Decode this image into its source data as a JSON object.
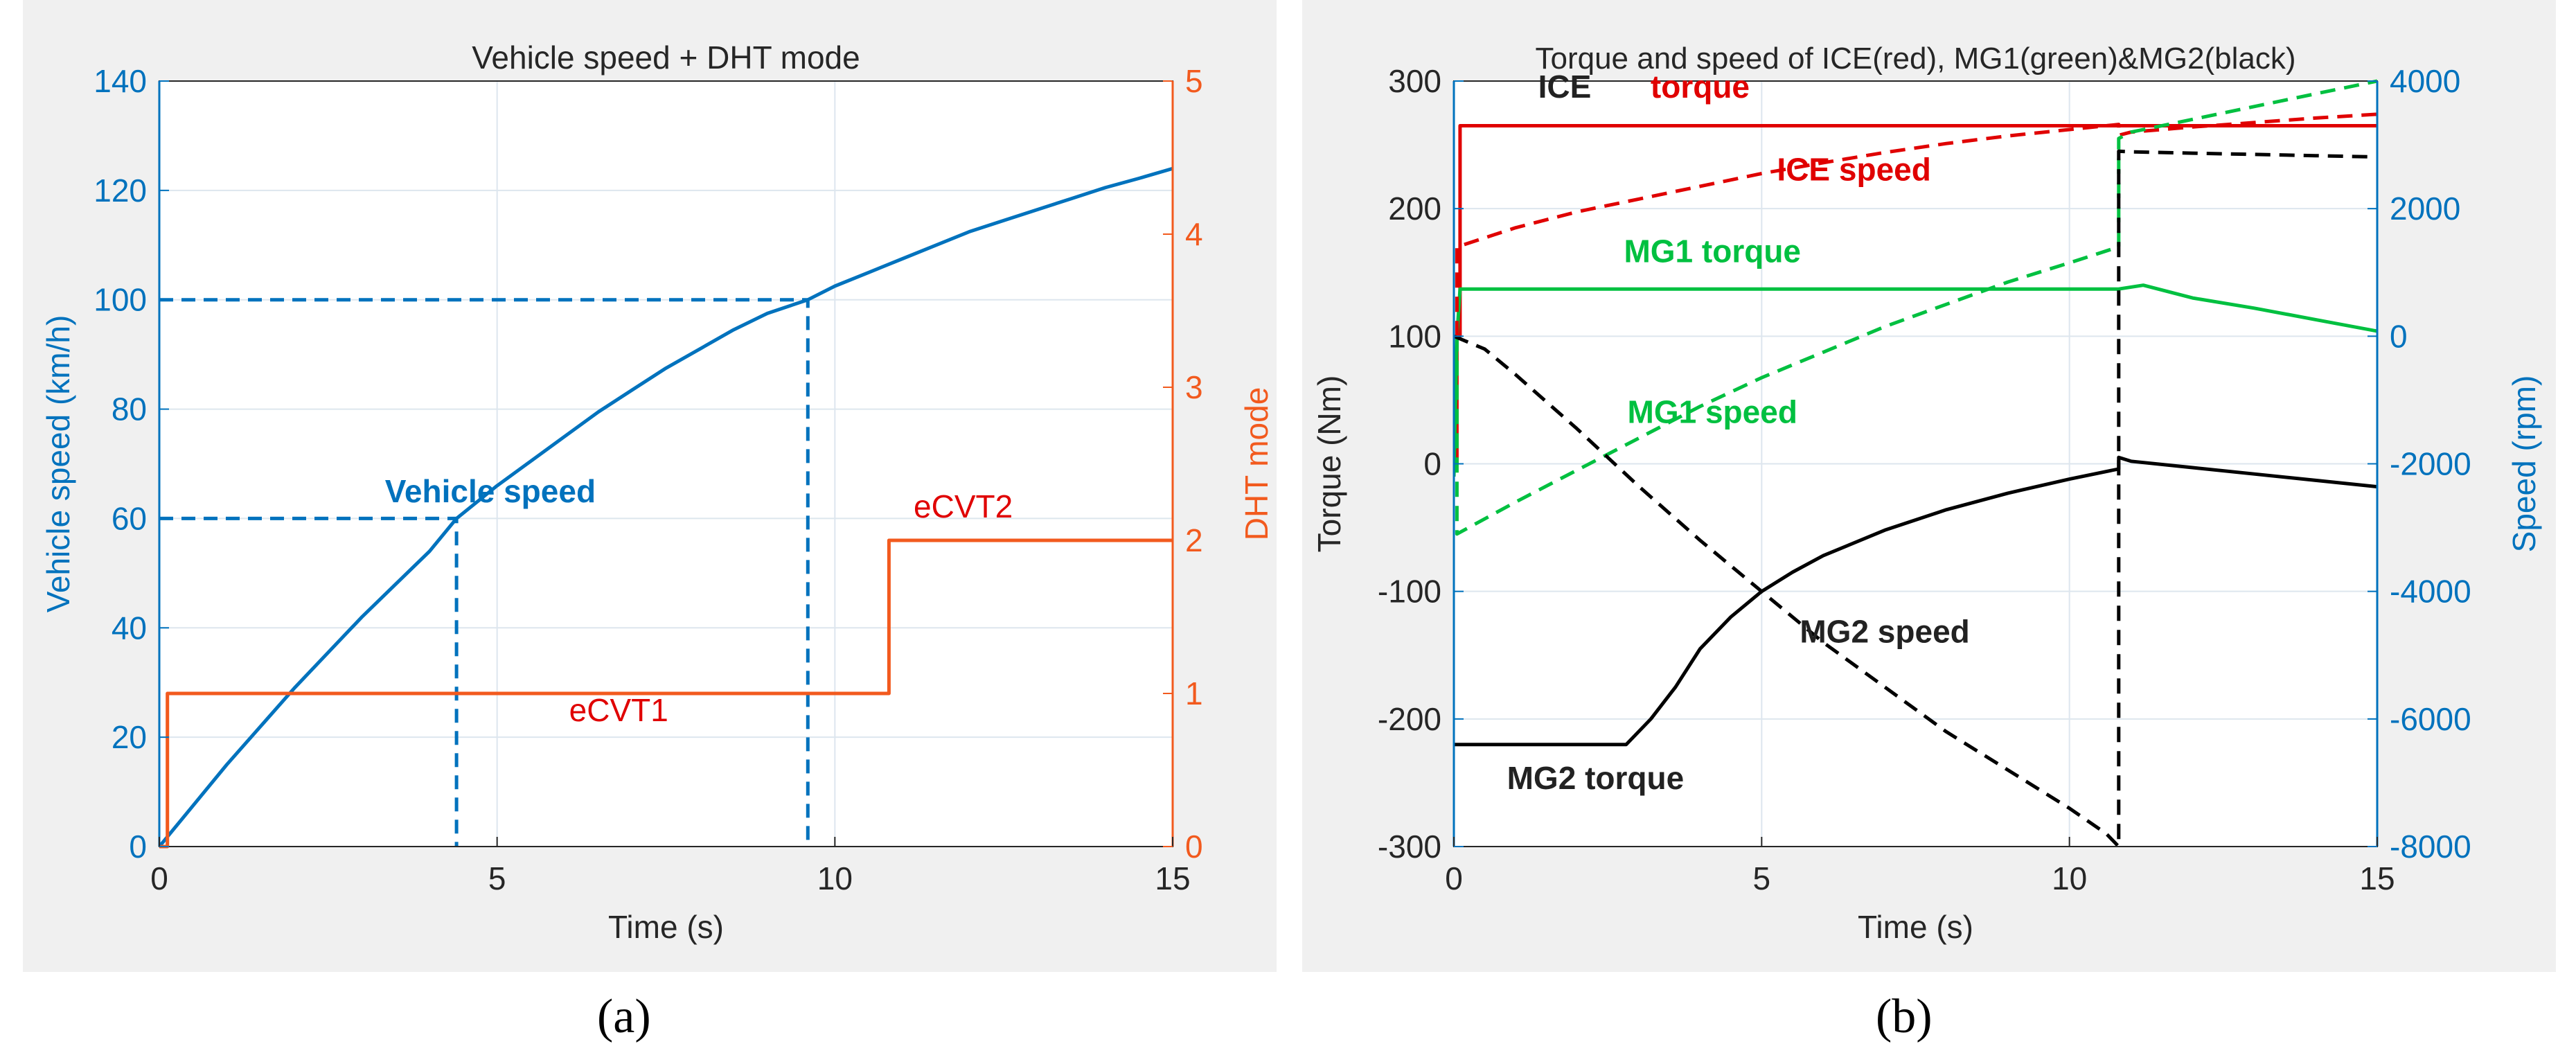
{
  "colors": {
    "blue": "#0072bd",
    "orange": "#f25a1e",
    "red": "#e00000",
    "green": "#00c040",
    "black": "#000000",
    "dark": "#222222",
    "grid": "#dde6ee"
  },
  "captions": {
    "a": "(a)",
    "b": "(b)"
  },
  "chart_data": [
    {
      "type": "line",
      "title": "Vehicle speed + DHT mode",
      "xlabel": "Time (s)",
      "ylabel": "Vehicle speed (km/h)",
      "ylabel_right": "DHT mode",
      "xlim": [
        0,
        15
      ],
      "ylim": [
        0,
        140
      ],
      "ylim_right": [
        0,
        5
      ],
      "xticks": [
        0,
        5,
        10,
        15
      ],
      "yticks": [
        0,
        20,
        40,
        60,
        80,
        100,
        120,
        140
      ],
      "yticks_right": [
        0,
        1,
        2,
        3,
        4,
        5
      ],
      "grid": true,
      "series": [
        {
          "name": "Vehicle speed",
          "axis": "left",
          "style": "solid",
          "x": [
            0,
            0.5,
            1,
            1.5,
            2,
            2.5,
            3,
            3.5,
            4,
            4.4,
            5,
            5.5,
            6,
            6.5,
            7,
            7.5,
            8,
            8.5,
            9,
            9.6,
            10,
            10.5,
            11,
            11.5,
            12,
            12.5,
            13,
            13.5,
            14,
            14.5,
            15
          ],
          "y": [
            0,
            7.5,
            15,
            22,
            29,
            35.5,
            42,
            48,
            54,
            60,
            66,
            70.5,
            75,
            79.5,
            83.5,
            87.5,
            91,
            94.5,
            97.5,
            100,
            102.5,
            105,
            107.5,
            110,
            112.5,
            114.5,
            116.5,
            118.5,
            120.5,
            122.2,
            124
          ]
        },
        {
          "name": "DHT mode",
          "axis": "right",
          "style": "step",
          "x": [
            0,
            0.12,
            0.12,
            10.8,
            10.8,
            15
          ],
          "y": [
            0,
            0,
            1,
            1,
            2,
            2
          ]
        }
      ],
      "reference_lines": [
        {
          "style": "dashed",
          "x": [
            0,
            4.4,
            4.4
          ],
          "y": [
            60,
            60,
            0
          ]
        },
        {
          "style": "dashed",
          "x": [
            0,
            9.6,
            9.6
          ],
          "y": [
            100,
            100,
            0
          ]
        }
      ],
      "annotations": [
        {
          "text": "Vehicle speed",
          "x": 4.9,
          "y": 63,
          "color": "blue",
          "bold": true
        },
        {
          "text": "eCVT2",
          "x": 11.9,
          "y": 2.15,
          "axis": "right",
          "color": "red"
        },
        {
          "text": "eCVT1",
          "x": 6.8,
          "y": 0.82,
          "axis": "right",
          "color": "red"
        }
      ]
    },
    {
      "type": "line",
      "title": "Torque and speed of ICE(red), MG1(green)&MG2(black)",
      "xlabel": "Time (s)",
      "ylabel": "Torque (Nm)",
      "ylabel_right": "Speed (rpm)",
      "xlim": [
        0,
        15
      ],
      "ylim": [
        -300,
        300
      ],
      "ylim_right": [
        -8000,
        4000
      ],
      "xticks": [
        0,
        5,
        10,
        15
      ],
      "yticks": [
        -300,
        -200,
        -100,
        0,
        100,
        200,
        300
      ],
      "yticks_right": [
        -8000,
        -6000,
        -4000,
        -2000,
        0,
        2000,
        4000
      ],
      "grid": true,
      "series": [
        {
          "name": "ICE torque",
          "axis": "left",
          "style": "solid",
          "color": "red",
          "x": [
            0,
            0.05,
            0.05,
            0.1,
            0.1,
            15
          ],
          "y": [
            0,
            0,
            100,
            100,
            265,
            265
          ]
        },
        {
          "name": "MG1 torque",
          "axis": "left",
          "style": "solid",
          "color": "green",
          "x": [
            0,
            0.05,
            0.1,
            10.8,
            11.2,
            12,
            13,
            14,
            15
          ],
          "y": [
            -10,
            100,
            137,
            137,
            140,
            130,
            122,
            113,
            104
          ]
        },
        {
          "name": "MG2 torque",
          "axis": "left",
          "style": "solid",
          "color": "black",
          "x": [
            0,
            2.8,
            3.2,
            3.6,
            4,
            4.5,
            5,
            5.5,
            6,
            7,
            8,
            9,
            10,
            10.8,
            10.8,
            11,
            12,
            13,
            14,
            15
          ],
          "y": [
            -220,
            -220,
            -200,
            -175,
            -145,
            -120,
            -100,
            -85,
            -72,
            -52,
            -36,
            -23,
            -12,
            -4,
            5,
            2,
            -3,
            -8,
            -13,
            -18
          ]
        },
        {
          "name": "ICE speed",
          "axis": "right",
          "style": "dashed",
          "color": "red",
          "x": [
            0.05,
            0.05,
            1,
            2,
            3,
            4,
            5,
            6,
            7,
            8,
            9,
            10,
            10.8,
            10.8,
            11,
            12,
            13,
            14,
            15
          ],
          "y": [
            0,
            1400,
            1700,
            1950,
            2150,
            2350,
            2550,
            2720,
            2880,
            3020,
            3140,
            3240,
            3320,
            3150,
            3200,
            3280,
            3350,
            3420,
            3480
          ]
        },
        {
          "name": "MG1 speed",
          "axis": "right",
          "style": "dashed",
          "color": "green",
          "x": [
            0.05,
            0.05,
            1,
            2,
            3,
            4,
            5,
            6,
            7,
            8,
            9,
            10,
            10.8,
            10.8,
            11,
            12,
            13,
            14,
            15
          ],
          "y": [
            0,
            -3100,
            -2600,
            -2100,
            -1600,
            -1100,
            -650,
            -250,
            150,
            500,
            850,
            1150,
            1400,
            3100,
            3200,
            3400,
            3600,
            3800,
            4000
          ]
        },
        {
          "name": "MG2 speed",
          "axis": "right",
          "style": "dashed",
          "color": "black",
          "x": [
            0,
            0.5,
            1,
            2,
            3,
            4,
            5,
            6,
            7,
            8,
            9,
            10,
            10.6,
            10.8,
            10.8,
            11,
            12,
            13,
            14,
            15
          ],
          "y": [
            0,
            -200,
            -600,
            -1450,
            -2350,
            -3200,
            -4000,
            -4800,
            -5500,
            -6200,
            -6800,
            -7400,
            -7800,
            -8000,
            2900,
            2890,
            2870,
            2850,
            2830,
            2810
          ]
        }
      ],
      "annotations": [
        {
          "text": "ICE",
          "x": 1.8,
          "y": 287,
          "color": "dark",
          "bold": true
        },
        {
          "text": "torque",
          "x": 4.0,
          "y": 287,
          "color": "red",
          "bold": true
        },
        {
          "text": "ICE speed",
          "x": 6.5,
          "y": 222,
          "color": "red",
          "bold": true
        },
        {
          "text": "MG1 torque",
          "x": 4.2,
          "y": 158,
          "color": "green",
          "bold": true
        },
        {
          "text": "MG1 speed",
          "x": 4.2,
          "y": 32,
          "color": "green",
          "bold": true
        },
        {
          "text": "MG2 speed",
          "x": 7.0,
          "y": -140,
          "color": "dark",
          "bold": true
        },
        {
          "text": "MG2 torque",
          "x": 2.3,
          "y": -255,
          "color": "dark",
          "bold": true
        }
      ]
    }
  ]
}
